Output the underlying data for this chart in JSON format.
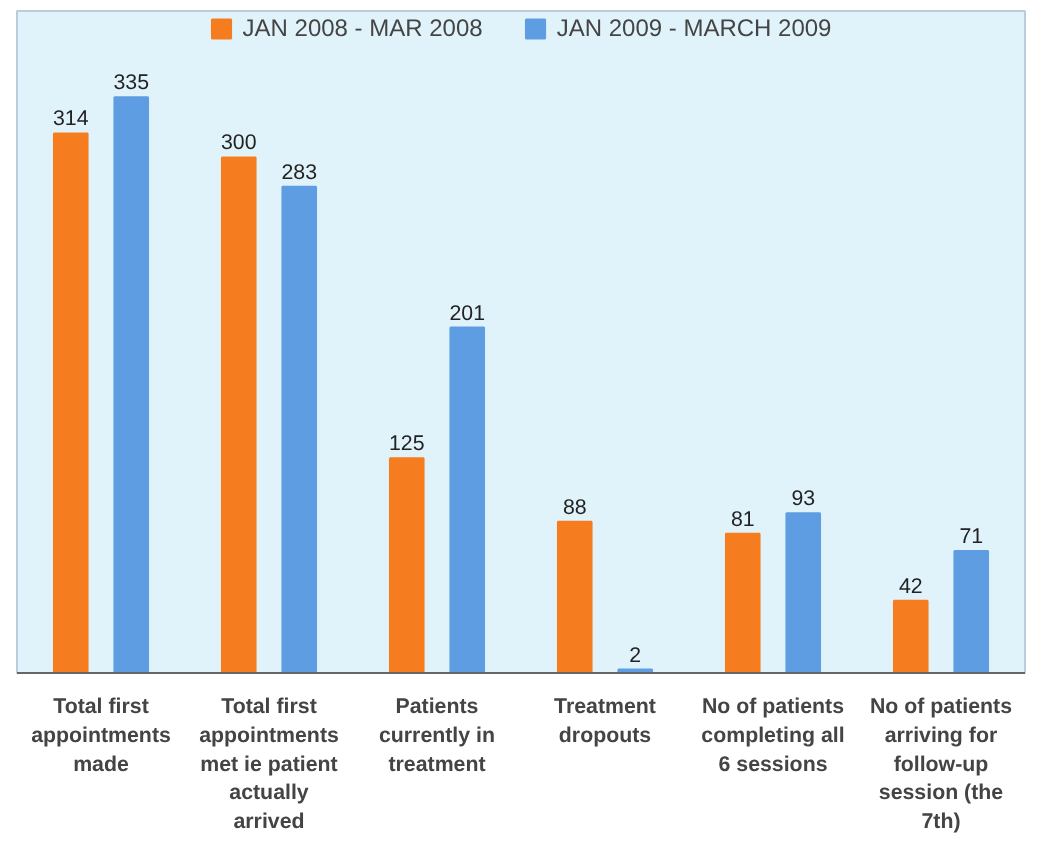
{
  "chart_data": {
    "type": "bar",
    "categories": [
      "Total first appointments made",
      "Total first appointments met ie patient actually arrived",
      "Patients currently in treatment",
      "Treatment dropouts",
      "No of patients completing all 6 sessions",
      "No of patients arriving for follow-up session (the 7th)"
    ],
    "series": [
      {
        "name": "JAN 2008 - MAR 2008",
        "color": "#f57c1f",
        "values": [
          314,
          300,
          125,
          88,
          81,
          42
        ]
      },
      {
        "name": "JAN 2009 - MARCH 2009",
        "color": "#5f9de3",
        "values": [
          335,
          283,
          201,
          2,
          93,
          71
        ]
      }
    ],
    "tick_labels": "x",
    "data_labels": true,
    "legend": "top",
    "grid": false
  }
}
